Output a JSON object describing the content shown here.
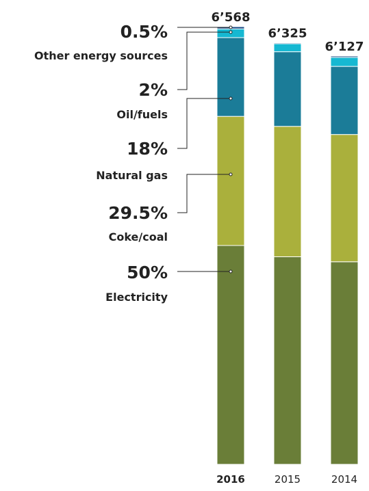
{
  "chart_data": {
    "type": "bar",
    "stacked": true,
    "categories": [
      "2016",
      "2015",
      "2014"
    ],
    "totals": [
      "6’568",
      "6’325",
      "6’127"
    ],
    "series": [
      {
        "name": "Electricity",
        "label": "50%",
        "color": "#6a7e38",
        "values": [
          3284,
          3115,
          3040
        ]
      },
      {
        "name": "Coke/coal",
        "label": "29.5%",
        "color": "#aab03c",
        "values": [
          1938,
          1957,
          1910
        ]
      },
      {
        "name": "Natural gas",
        "label": "18%",
        "color": "#1b7c98",
        "values": [
          1182,
          1120,
          1022
        ]
      },
      {
        "name": "Oil/fuels",
        "label": "2%",
        "color": "#16b8d2",
        "values": [
          131,
          120,
          135
        ]
      },
      {
        "name": "Other energy sources",
        "label": "0.5%",
        "color": "#1f4f88",
        "values": [
          33,
          13,
          20
        ]
      }
    ],
    "ylim": [
      0,
      6568
    ],
    "grid": false,
    "legend": "left"
  }
}
